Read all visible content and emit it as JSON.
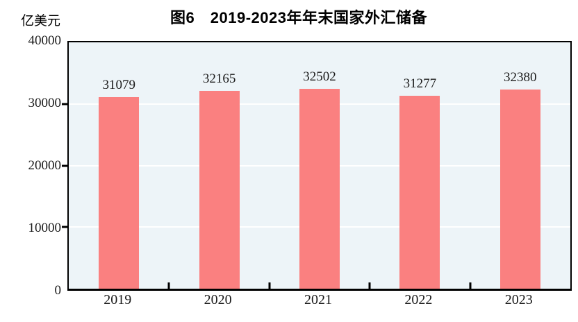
{
  "title": "图6　2019-2023年年末国家外汇储备",
  "unit_label": "亿美元",
  "colors": {
    "bar": "#FA8080",
    "plot_background": "#EDF4F8",
    "gridline": "#FFFFFF",
    "axis": "#000000"
  },
  "chart_data": {
    "type": "bar",
    "title": "图6　2019-2023年年末国家外汇储备",
    "categories": [
      "2019",
      "2020",
      "2021",
      "2022",
      "2023"
    ],
    "values": [
      31079,
      32165,
      32502,
      31277,
      32380
    ],
    "data_labels_shown": true,
    "xlabel": "",
    "ylabel": "亿美元",
    "ylim": [
      0,
      40000
    ],
    "yticks": [
      0,
      10000,
      20000,
      30000,
      40000
    ],
    "grid": true,
    "legend": "none",
    "bar_color": "#FA8080"
  }
}
